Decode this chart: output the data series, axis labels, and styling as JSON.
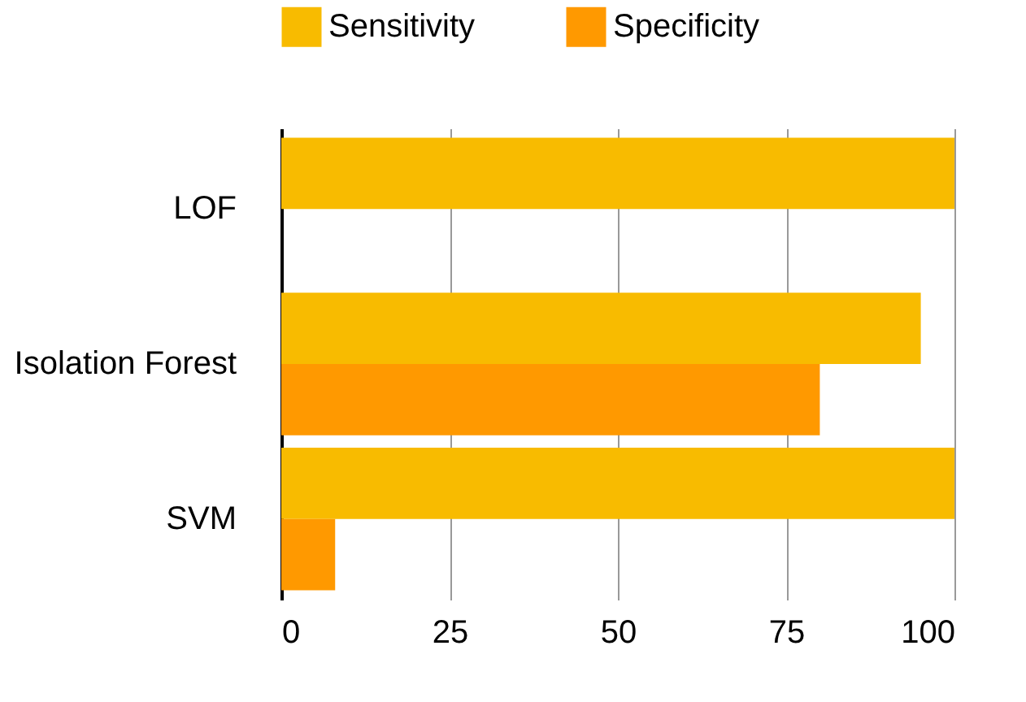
{
  "chart_data": {
    "type": "bar",
    "orientation": "horizontal",
    "categories": [
      "LOF",
      "Isolation Forest",
      "SVM"
    ],
    "series": [
      {
        "name": "Sensitivity",
        "color": "#f8bb00",
        "values": [
          100,
          95,
          100
        ]
      },
      {
        "name": "Specificity",
        "color": "#ff9900",
        "values": [
          0,
          80,
          8
        ]
      }
    ],
    "xlim": [
      0,
      100
    ],
    "xticks": [
      0,
      25,
      50,
      75,
      100
    ],
    "grid": "x",
    "legend": "top"
  }
}
